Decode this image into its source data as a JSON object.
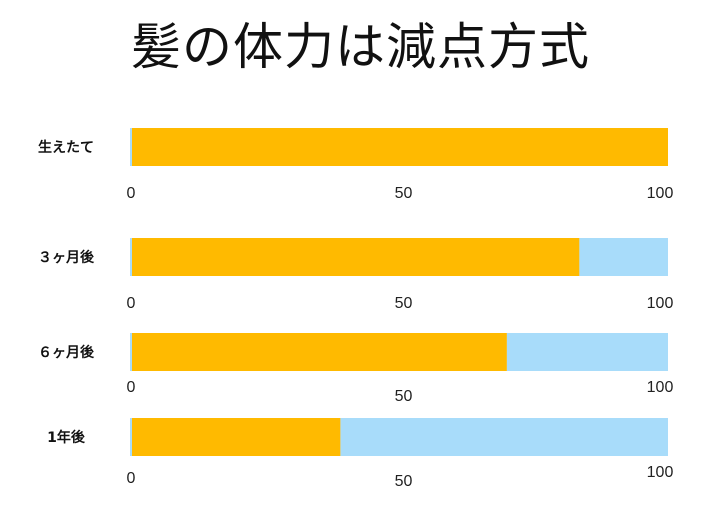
{
  "title": "髪の体力は減点方式",
  "chart_data": {
    "type": "bar",
    "stacked": true,
    "orientation": "horizontal",
    "title": "髪の体力は減点方式",
    "categories": [
      "生えたて",
      "３ヶ月後",
      "６ヶ月後",
      "1年後"
    ],
    "series": [
      {
        "values": [
          100,
          83.5,
          70,
          39
        ],
        "color": "#FFBA00"
      },
      {
        "values": [
          0,
          16.5,
          30,
          61
        ],
        "color": "#A8DCFA"
      }
    ],
    "xlim": [
      0,
      100
    ],
    "ticks": [
      0,
      50,
      100
    ],
    "tick_labels": [
      "0",
      "50",
      "100"
    ],
    "axis_line_color": "#A8DCFA",
    "grid": false,
    "legend": "none"
  }
}
